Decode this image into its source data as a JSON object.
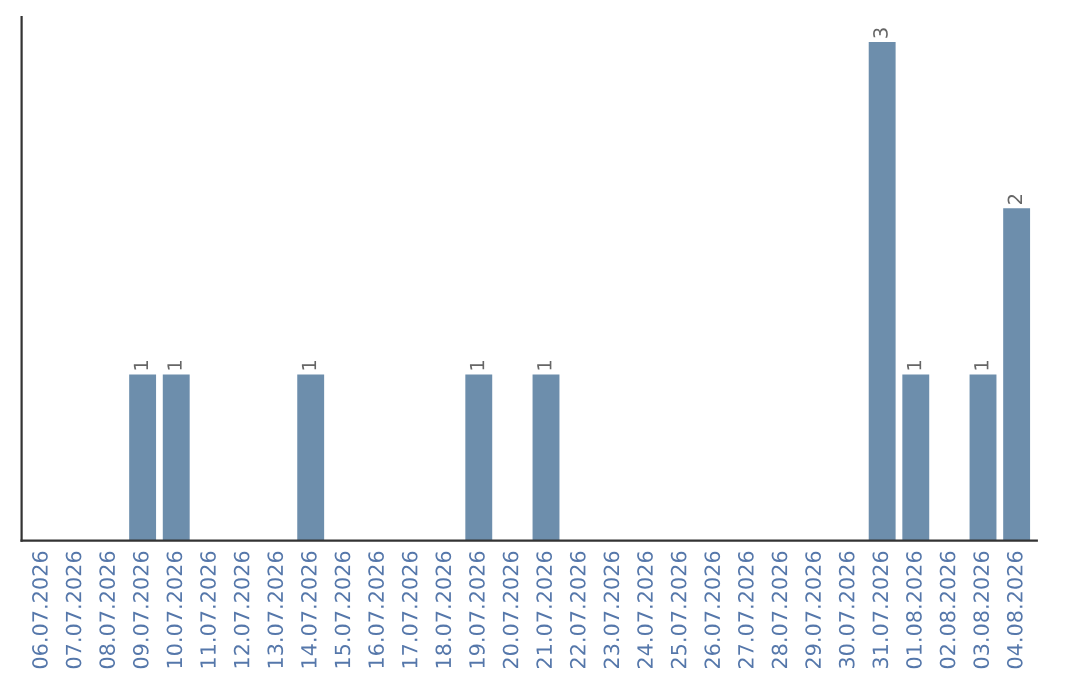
{
  "chart_data": {
    "type": "bar",
    "categories": [
      "06.07.2026",
      "07.07.2026",
      "08.07.2026",
      "09.07.2026",
      "10.07.2026",
      "11.07.2026",
      "12.07.2026",
      "13.07.2026",
      "14.07.2026",
      "15.07.2026",
      "16.07.2026",
      "17.07.2026",
      "18.07.2026",
      "19.07.2026",
      "20.07.2026",
      "21.07.2026",
      "22.07.2026",
      "23.07.2026",
      "24.07.2026",
      "25.07.2026",
      "26.07.2026",
      "27.07.2026",
      "28.07.2026",
      "29.07.2026",
      "30.07.2026",
      "31.07.2026",
      "01.08.2026",
      "02.08.2026",
      "03.08.2026",
      "04.08.2026"
    ],
    "values": [
      0,
      0,
      0,
      1,
      1,
      0,
      0,
      0,
      1,
      0,
      0,
      0,
      0,
      1,
      0,
      1,
      0,
      0,
      0,
      0,
      0,
      0,
      0,
      0,
      0,
      3,
      1,
      0,
      1,
      2
    ],
    "value_labels": [
      null,
      null,
      null,
      "1",
      "1",
      null,
      null,
      null,
      "1",
      null,
      null,
      null,
      null,
      "1",
      null,
      "1",
      null,
      null,
      null,
      null,
      null,
      null,
      null,
      null,
      null,
      "3",
      "1",
      null,
      "1",
      "2"
    ],
    "color": "#6d8eac",
    "tick_labels": "x",
    "grid": false,
    "legend": false
  }
}
